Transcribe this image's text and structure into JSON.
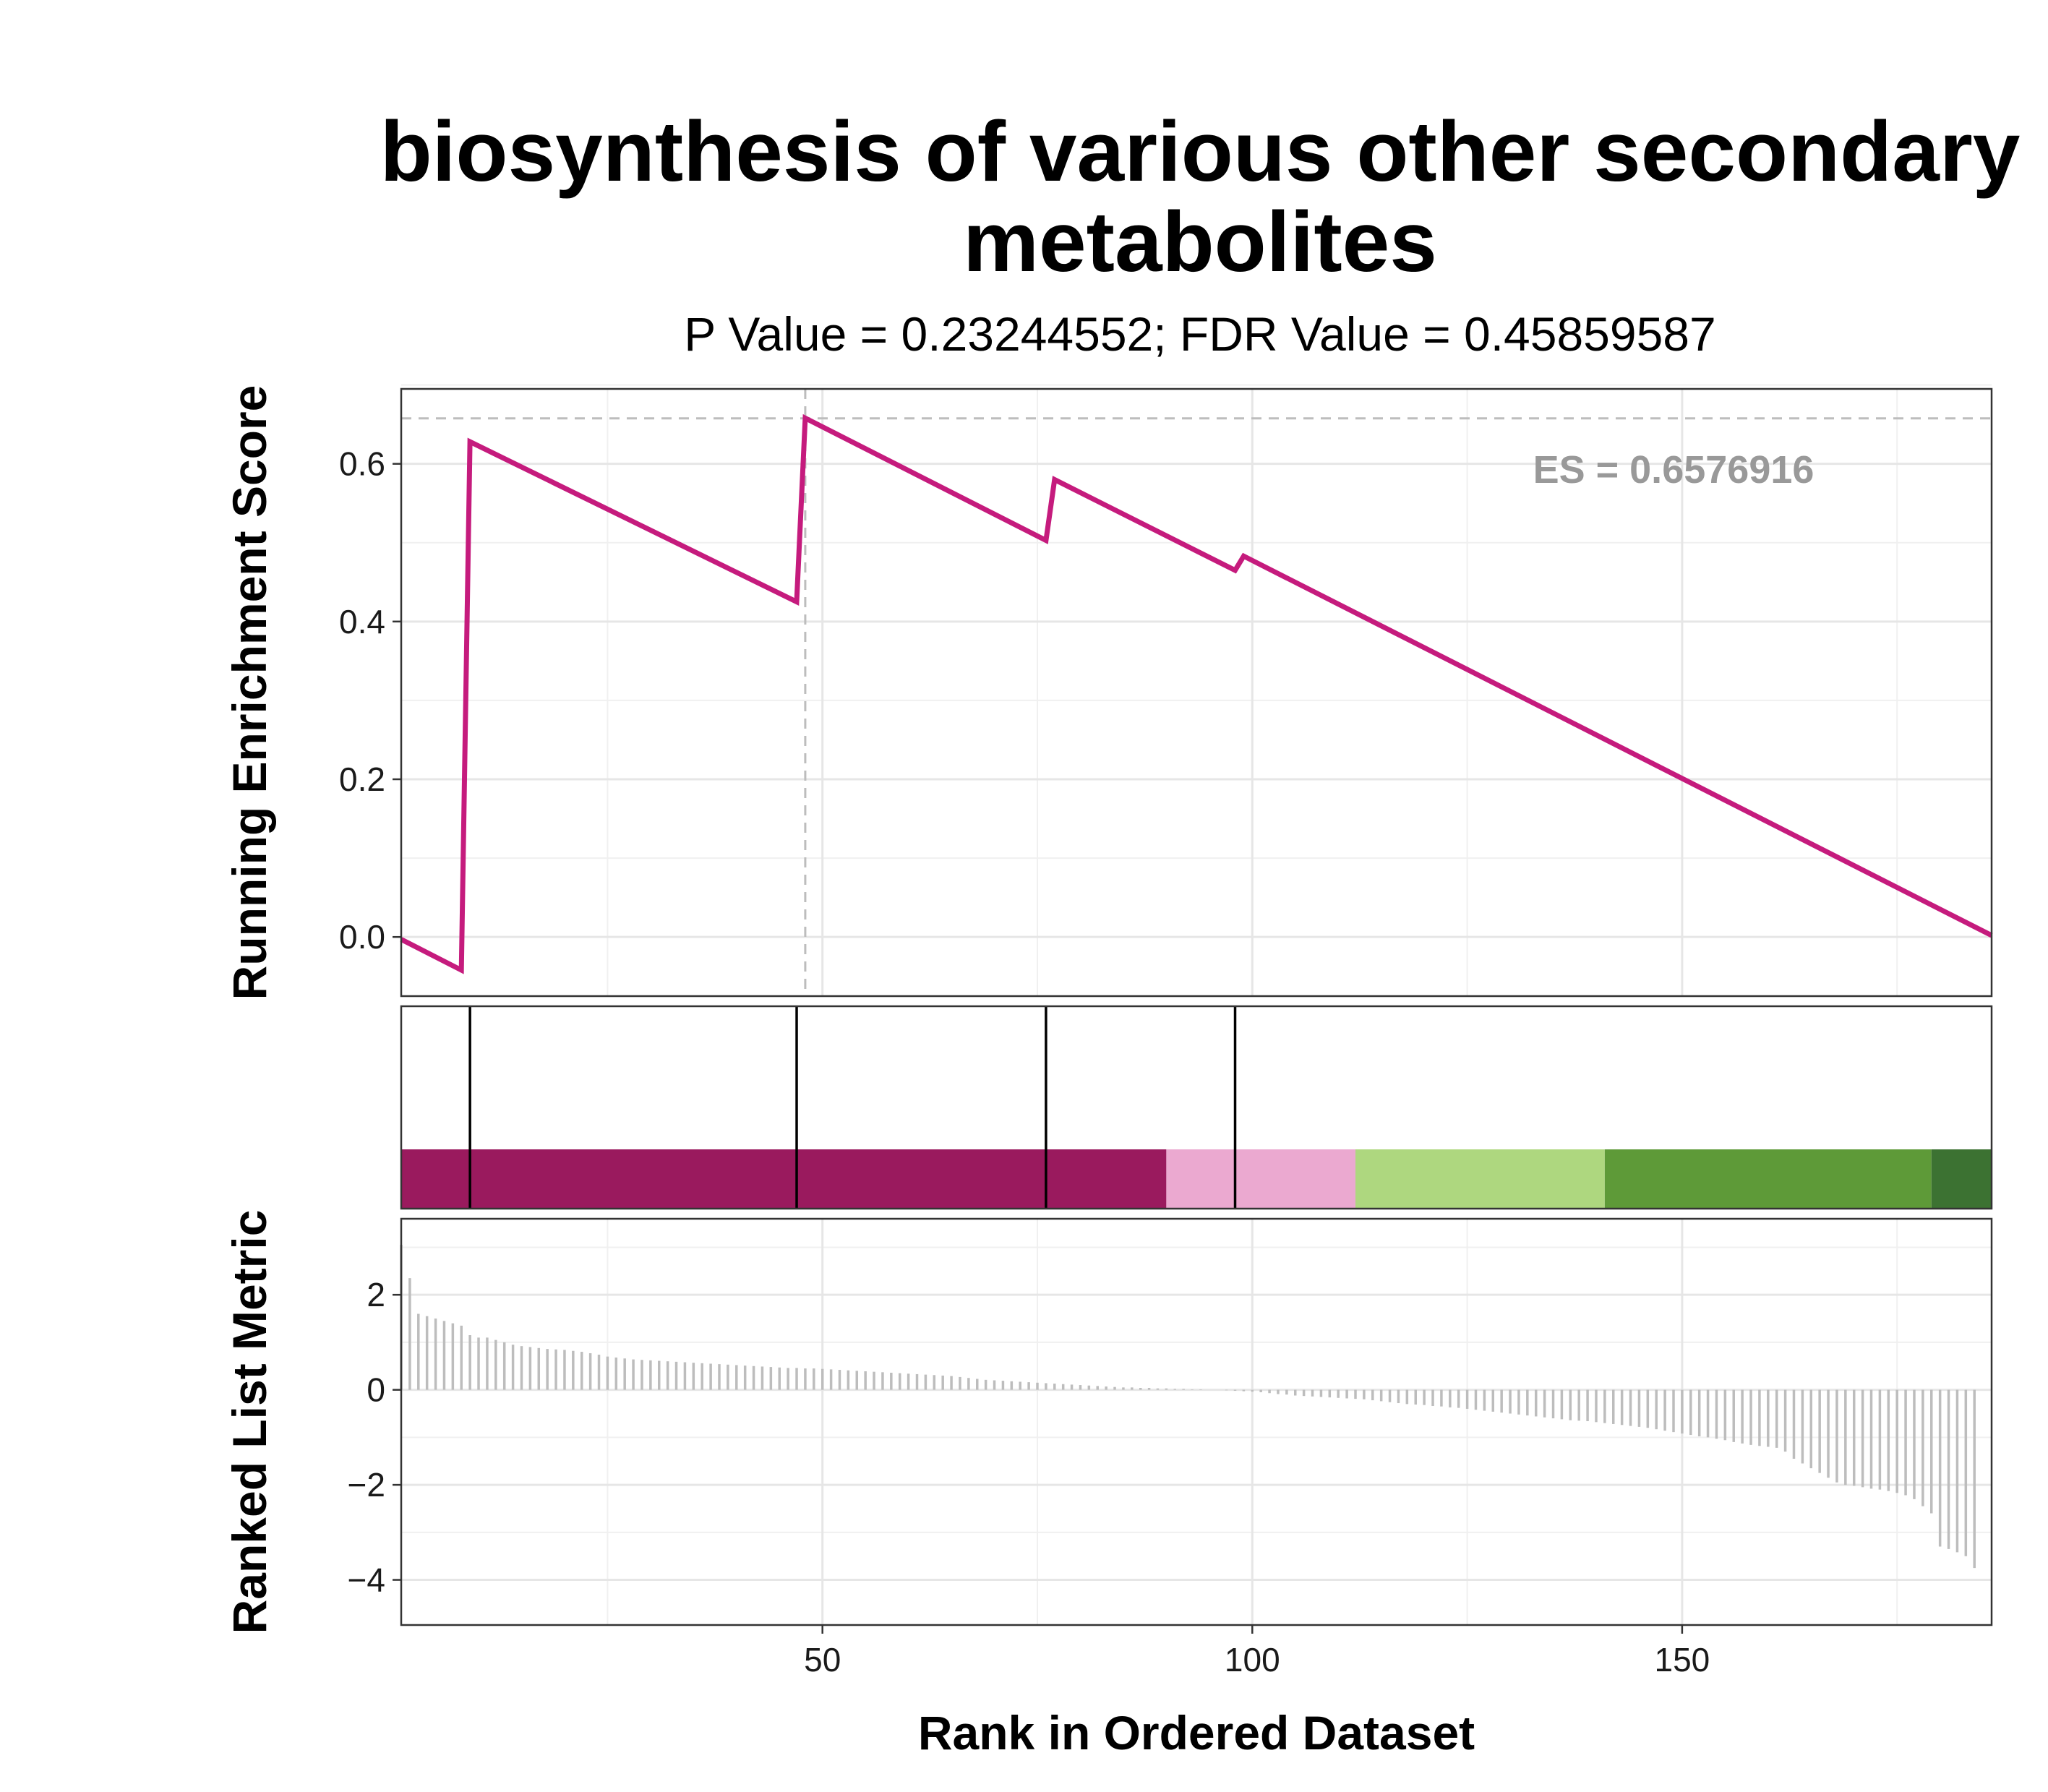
{
  "chart_data": {
    "type": "line",
    "title_lines": [
      "biosynthesis of various other secondary",
      "metabolites"
    ],
    "subtitle": "P Value = 0.23244552; FDR Value = 0.45859587",
    "xlabel": "Rank in Ordered Dataset",
    "xlim": [
      1,
      186
    ],
    "xticks": [
      50,
      100,
      150
    ],
    "grid": true,
    "panels": {
      "enrichment": {
        "ylabel": "Running Enrichment Score",
        "ylim": [
          -0.075,
          0.695
        ],
        "yticks": [
          0.0,
          0.2,
          0.4,
          0.6
        ],
        "ytick_labels": [
          "0.0",
          "0.2",
          "0.4",
          "0.6"
        ],
        "line_color": "#C51B7D",
        "points": [
          [
            1,
            -0.003
          ],
          [
            8,
            -0.042
          ],
          [
            9,
            0.628
          ],
          [
            47,
            0.425
          ],
          [
            48,
            0.658
          ],
          [
            76,
            0.503
          ],
          [
            77,
            0.58
          ],
          [
            98,
            0.465
          ],
          [
            99,
            0.483
          ],
          [
            186,
            0.002
          ]
        ],
        "es_value": 0.6576916,
        "es_label": "ES = 0.6576916",
        "es_rank": 48
      },
      "hits": {
        "hit_ranks": [
          9,
          47,
          76,
          98
        ],
        "color_bands": [
          {
            "from": 1,
            "to": 90,
            "color": "#9A1A5E"
          },
          {
            "from": 90,
            "to": 112,
            "color": "#EBA9D0"
          },
          {
            "from": 112,
            "to": 141,
            "color": "#AED77F"
          },
          {
            "from": 141,
            "to": 179,
            "color": "#5E9A38"
          },
          {
            "from": 179,
            "to": 186,
            "color": "#3C7232"
          }
        ]
      },
      "ranked": {
        "ylabel": "Ranked List Metric",
        "ylim": [
          -4.95,
          3.6
        ],
        "yticks": [
          2,
          0,
          -2,
          -4
        ],
        "ytick_labels": [
          "2",
          "0",
          "−2",
          "−4"
        ],
        "bar_color": "#BDBDBD",
        "values": [
          3.05,
          2.35,
          1.6,
          1.55,
          1.5,
          1.45,
          1.4,
          1.35,
          1.15,
          1.1,
          1.1,
          1.05,
          1.0,
          0.95,
          0.92,
          0.9,
          0.88,
          0.86,
          0.85,
          0.84,
          0.82,
          0.8,
          0.77,
          0.74,
          0.7,
          0.68,
          0.66,
          0.64,
          0.63,
          0.62,
          0.61,
          0.6,
          0.59,
          0.58,
          0.57,
          0.56,
          0.55,
          0.54,
          0.53,
          0.52,
          0.51,
          0.5,
          0.49,
          0.48,
          0.47,
          0.46,
          0.46,
          0.45,
          0.45,
          0.44,
          0.43,
          0.42,
          0.41,
          0.4,
          0.39,
          0.38,
          0.37,
          0.36,
          0.35,
          0.34,
          0.33,
          0.32,
          0.31,
          0.3,
          0.29,
          0.27,
          0.25,
          0.23,
          0.21,
          0.2,
          0.19,
          0.18,
          0.17,
          0.16,
          0.15,
          0.14,
          0.13,
          0.12,
          0.11,
          0.1,
          0.09,
          0.08,
          0.07,
          0.06,
          0.05,
          0.05,
          0.04,
          0.04,
          0.03,
          0.03,
          0.02,
          0.02,
          0.01,
          0.01,
          0.0,
          0.0,
          -0.01,
          -0.02,
          -0.03,
          -0.04,
          -0.05,
          -0.07,
          -0.09,
          -0.1,
          -0.12,
          -0.13,
          -0.14,
          -0.15,
          -0.16,
          -0.17,
          -0.18,
          -0.19,
          -0.2,
          -0.22,
          -0.24,
          -0.26,
          -0.28,
          -0.3,
          -0.31,
          -0.32,
          -0.34,
          -0.35,
          -0.37,
          -0.38,
          -0.4,
          -0.42,
          -0.44,
          -0.46,
          -0.48,
          -0.5,
          -0.52,
          -0.54,
          -0.56,
          -0.58,
          -0.6,
          -0.62,
          -0.64,
          -0.65,
          -0.66,
          -0.68,
          -0.7,
          -0.72,
          -0.74,
          -0.76,
          -0.78,
          -0.8,
          -0.83,
          -0.86,
          -0.89,
          -0.92,
          -0.95,
          -0.98,
          -1.0,
          -1.03,
          -1.06,
          -1.1,
          -1.13,
          -1.16,
          -1.18,
          -1.2,
          -1.22,
          -1.3,
          -1.45,
          -1.55,
          -1.65,
          -1.75,
          -1.85,
          -1.95,
          -2.0,
          -2.02,
          -2.05,
          -2.08,
          -2.1,
          -2.13,
          -2.17,
          -2.22,
          -2.3,
          -2.45,
          -2.6,
          -3.3,
          -3.35,
          -3.42,
          -3.5,
          -3.75
        ]
      }
    }
  }
}
